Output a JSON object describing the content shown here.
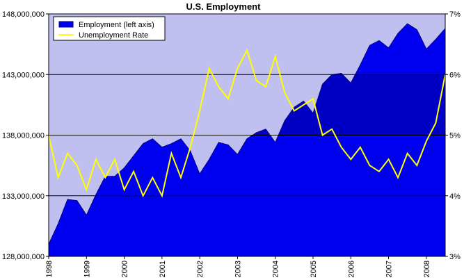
{
  "chart_data": {
    "type": "area+line",
    "title": "U.S. Employment",
    "xlabel": "",
    "ylabel": "",
    "y2label": "",
    "x_start": "1998-01",
    "x_end": "2008-07",
    "x_ticks": [
      "1998",
      "1999",
      "2000",
      "2001",
      "2002",
      "2003",
      "2004",
      "2005",
      "2006",
      "2007",
      "2008"
    ],
    "ylim": [
      128000000,
      148000000
    ],
    "y_ticks": [
      "128,000,000",
      "133,000,000",
      "138,000,000",
      "143,000,000",
      "148,000,000"
    ],
    "y2lim": [
      3,
      7
    ],
    "y2_ticks": [
      "3%",
      "4%",
      "5%",
      "6%",
      "7%"
    ],
    "gridlines": "horizontal",
    "legend": "top-left",
    "colors": {
      "plot_background": "#C0C0F0",
      "area_fill": "#0000F0",
      "area_band": "#0000A0",
      "area_edge": "#000080",
      "line": "#FFFF00"
    },
    "series": [
      {
        "name": "Employment (left axis)",
        "type": "area",
        "axis": "left",
        "x": [
          "1998-01",
          "1998-04",
          "1998-07",
          "1998-10",
          "1999-01",
          "1999-04",
          "1999-07",
          "1999-10",
          "2000-01",
          "2000-04",
          "2000-07",
          "2000-10",
          "2001-01",
          "2001-04",
          "2001-07",
          "2001-10",
          "2002-01",
          "2002-04",
          "2002-07",
          "2002-10",
          "2003-01",
          "2003-04",
          "2003-07",
          "2003-10",
          "2004-01",
          "2004-04",
          "2004-07",
          "2004-10",
          "2005-01",
          "2005-04",
          "2005-07",
          "2005-10",
          "2006-01",
          "2006-04",
          "2006-07",
          "2006-10",
          "2007-01",
          "2007-04",
          "2007-07",
          "2007-10",
          "2008-01",
          "2008-04",
          "2008-07"
        ],
        "values": [
          129000000,
          130700000,
          132700000,
          132600000,
          131400000,
          133100000,
          134600000,
          134600000,
          135300000,
          136300000,
          137300000,
          137700000,
          137000000,
          137300000,
          137700000,
          136700000,
          134800000,
          136000000,
          137400000,
          137200000,
          136400000,
          137700000,
          138200000,
          138500000,
          137400000,
          139200000,
          140300000,
          140800000,
          139800000,
          142200000,
          143000000,
          143100000,
          142300000,
          143800000,
          145400000,
          145800000,
          145200000,
          146400000,
          147200000,
          146700000,
          145100000,
          145900000,
          146800000
        ]
      },
      {
        "name": "Unemployment Rate",
        "type": "line",
        "axis": "right",
        "x": [
          "1998-01",
          "1998-04",
          "1998-07",
          "1998-10",
          "1999-01",
          "1999-04",
          "1999-07",
          "1999-10",
          "2000-01",
          "2000-04",
          "2000-07",
          "2000-10",
          "2001-01",
          "2001-04",
          "2001-07",
          "2001-10",
          "2002-01",
          "2002-04",
          "2002-07",
          "2002-10",
          "2003-01",
          "2003-04",
          "2003-07",
          "2003-10",
          "2004-01",
          "2004-04",
          "2004-07",
          "2004-10",
          "2005-01",
          "2005-04",
          "2005-07",
          "2005-10",
          "2006-01",
          "2006-04",
          "2006-07",
          "2006-10",
          "2007-01",
          "2007-04",
          "2007-07",
          "2007-10",
          "2008-01",
          "2008-04",
          "2008-07"
        ],
        "values": [
          5.0,
          4.3,
          4.7,
          4.5,
          4.1,
          4.6,
          4.3,
          4.6,
          4.1,
          4.4,
          4.0,
          4.3,
          4.0,
          4.7,
          4.3,
          4.8,
          5.4,
          6.1,
          5.8,
          5.6,
          6.1,
          6.4,
          5.9,
          5.8,
          6.3,
          5.7,
          5.4,
          5.5,
          5.6,
          5.0,
          5.1,
          4.8,
          4.6,
          4.8,
          4.5,
          4.4,
          4.6,
          4.3,
          4.7,
          4.5,
          4.9,
          5.2,
          6.0
        ]
      }
    ]
  }
}
